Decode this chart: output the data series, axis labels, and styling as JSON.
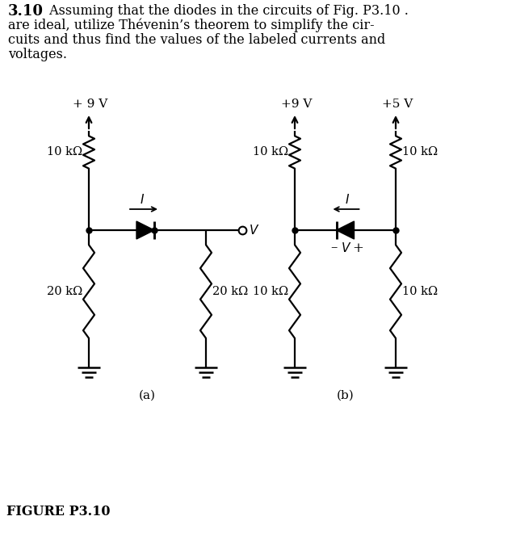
{
  "title_bold": "3.10",
  "title_text": " Assuming that the diodes in the circuits of Fig. P3.10 .",
  "body_text1": "are ideal, utilize Thévenin’s theorem to simplify the cir-",
  "body_text2": "cuits and thus find the values of the labeled currents and",
  "body_text3": "voltages.",
  "figure_label_a": "(a)",
  "figure_label_b": "(b)",
  "figure_label_main": "FIGURE P3.10",
  "bg_color": "#ffffff",
  "line_color": "#000000",
  "font_size_body": 11.5,
  "font_size_label": 11
}
